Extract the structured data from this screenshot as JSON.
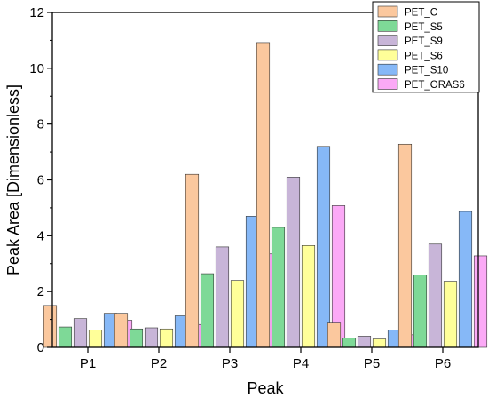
{
  "chart_data": {
    "type": "bar",
    "xlabel": "Peak",
    "ylabel": "Peak Area [Dimensionless]",
    "categories": [
      "P1",
      "P2",
      "P3",
      "P4",
      "P5",
      "P6"
    ],
    "ylim": [
      0,
      12
    ],
    "yticks": [
      "0",
      "2",
      "4",
      "6",
      "8",
      "10",
      "12"
    ],
    "legend_position": "top-right",
    "grid": false,
    "series": [
      {
        "name": "PET_C",
        "color": "#fbc89e",
        "values": [
          1.5,
          1.22,
          6.2,
          10.92,
          0.87,
          7.28
        ]
      },
      {
        "name": "PET_S5",
        "color": "#7ed997",
        "values": [
          0.73,
          0.66,
          2.64,
          4.3,
          0.33,
          2.6
        ]
      },
      {
        "name": "PET_S9",
        "color": "#c8b5d8",
        "values": [
          1.03,
          0.7,
          3.6,
          6.1,
          0.4,
          3.7
        ]
      },
      {
        "name": "PET_S6",
        "color": "#ffff99",
        "values": [
          0.62,
          0.66,
          2.4,
          3.65,
          0.3,
          2.37
        ]
      },
      {
        "name": "PET_S10",
        "color": "#86b8f7",
        "values": [
          1.22,
          1.13,
          4.7,
          7.2,
          0.62,
          4.87
        ]
      },
      {
        "name": "PET_ORAS6",
        "color": "#fba9f6",
        "values": [
          0.97,
          0.82,
          3.35,
          5.08,
          0.45,
          3.28
        ]
      }
    ]
  }
}
